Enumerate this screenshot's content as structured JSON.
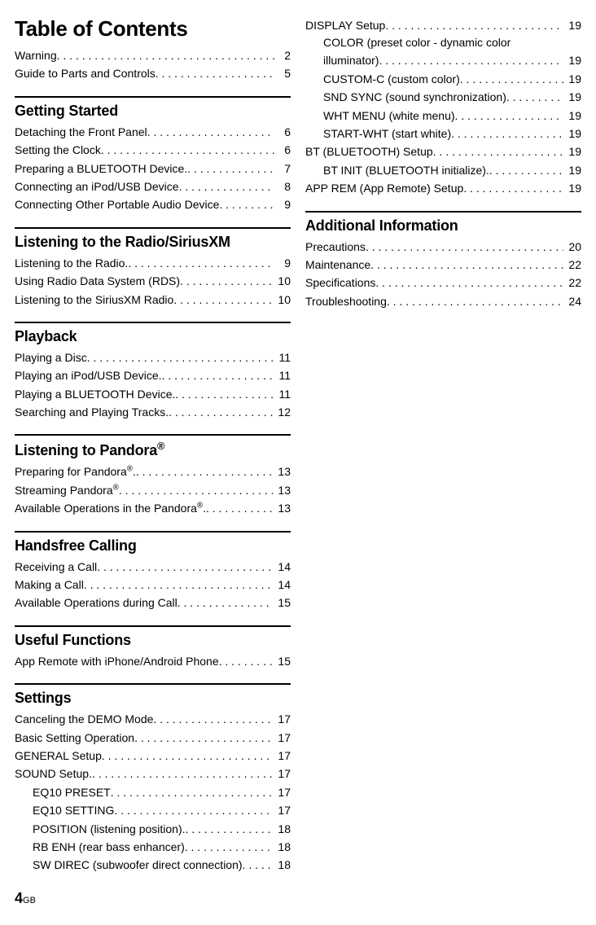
{
  "title": "Table of Contents",
  "footer": {
    "page": "4",
    "suffix": "GB"
  },
  "col1": {
    "intro": [
      {
        "label": "Warning",
        "page": "2"
      },
      {
        "label": "Guide to Parts and Controls",
        "page": "5"
      }
    ],
    "sections": [
      {
        "head": "Getting Started",
        "entries": [
          {
            "label": "Detaching the Front Panel",
            "page": "6"
          },
          {
            "label": "Setting the Clock",
            "page": "6"
          },
          {
            "label": "Preparing a BLUETOOTH Device.",
            "page": "7"
          },
          {
            "label": "Connecting an iPod/USB Device",
            "page": "8"
          },
          {
            "label": "Connecting Other Portable Audio Device",
            "page": "9"
          }
        ]
      },
      {
        "head": "Listening to the Radio/SiriusXM",
        "entries": [
          {
            "label": "Listening to the Radio.",
            "page": "9"
          },
          {
            "label": "Using Radio Data System (RDS)",
            "page": "10"
          },
          {
            "label": "Listening to the SiriusXM Radio",
            "page": "10"
          }
        ]
      },
      {
        "head": "Playback",
        "entries": [
          {
            "label": "Playing a Disc",
            "page": "11"
          },
          {
            "label": "Playing an iPod/USB Device.",
            "page": "11"
          },
          {
            "label": "Playing a BLUETOOTH Device.",
            "page": "11"
          },
          {
            "label": "Searching and Playing Tracks.",
            "page": "12"
          }
        ]
      },
      {
        "head": "Listening to Pandora®",
        "entries": [
          {
            "label": "Preparing for Pandora®.",
            "page": "13"
          },
          {
            "label": "Streaming Pandora®",
            "page": "13"
          },
          {
            "label": "Available Operations in the Pandora®.",
            "page": "13"
          }
        ]
      },
      {
        "head": "Handsfree Calling",
        "entries": [
          {
            "label": "Receiving a Call",
            "page": "14"
          },
          {
            "label": "Making a Call",
            "page": "14"
          },
          {
            "label": "Available Operations during Call",
            "page": "15"
          }
        ]
      },
      {
        "head": "Useful Functions",
        "entries": [
          {
            "label": "App Remote with iPhone/Android Phone",
            "page": "15"
          }
        ]
      },
      {
        "head": "Settings",
        "entries": [
          {
            "label": "Canceling the DEMO Mode",
            "page": "17"
          },
          {
            "label": "Basic Setting Operation",
            "page": "17"
          },
          {
            "label": "GENERAL Setup",
            "page": "17"
          },
          {
            "label": "SOUND Setup.",
            "page": "17"
          },
          {
            "label": "EQ10 PRESET",
            "page": "17",
            "indent": 1
          },
          {
            "label": "EQ10 SETTING",
            "page": "17",
            "indent": 1
          },
          {
            "label": "POSITION (listening position).",
            "page": "18",
            "indent": 1
          },
          {
            "label": "RB ENH (rear bass enhancer)",
            "page": "18",
            "indent": 1
          },
          {
            "label": "SW DIREC (subwoofer direct connection)",
            "page": "18",
            "indent": 1
          }
        ]
      }
    ]
  },
  "col2": {
    "continuation": [
      {
        "label": "DISPLAY Setup",
        "page": "19"
      },
      {
        "wrap": true,
        "line1": "COLOR (preset color - dynamic color",
        "line2": "illuminator)",
        "page": "19"
      },
      {
        "label": "CUSTOM-C (custom color)",
        "page": "19",
        "indent": 1
      },
      {
        "label": "SND SYNC (sound synchronization)",
        "page": "19",
        "indent": 1
      },
      {
        "label": "WHT MENU (white menu)",
        "page": "19",
        "indent": 1
      },
      {
        "label": "START-WHT (start white)",
        "page": "19",
        "indent": 1
      },
      {
        "label": "BT (BLUETOOTH) Setup",
        "page": "19"
      },
      {
        "label": "BT INIT (BLUETOOTH initialize).",
        "page": "19",
        "indent": 1
      },
      {
        "label": "APP REM (App Remote) Setup",
        "page": "19"
      }
    ],
    "sections": [
      {
        "head": "Additional Information",
        "entries": [
          {
            "label": "Precautions",
            "page": "20"
          },
          {
            "label": "Maintenance",
            "page": "22"
          },
          {
            "label": "Specifications",
            "page": "22"
          },
          {
            "label": "Troubleshooting",
            "page": "24"
          }
        ]
      }
    ]
  }
}
